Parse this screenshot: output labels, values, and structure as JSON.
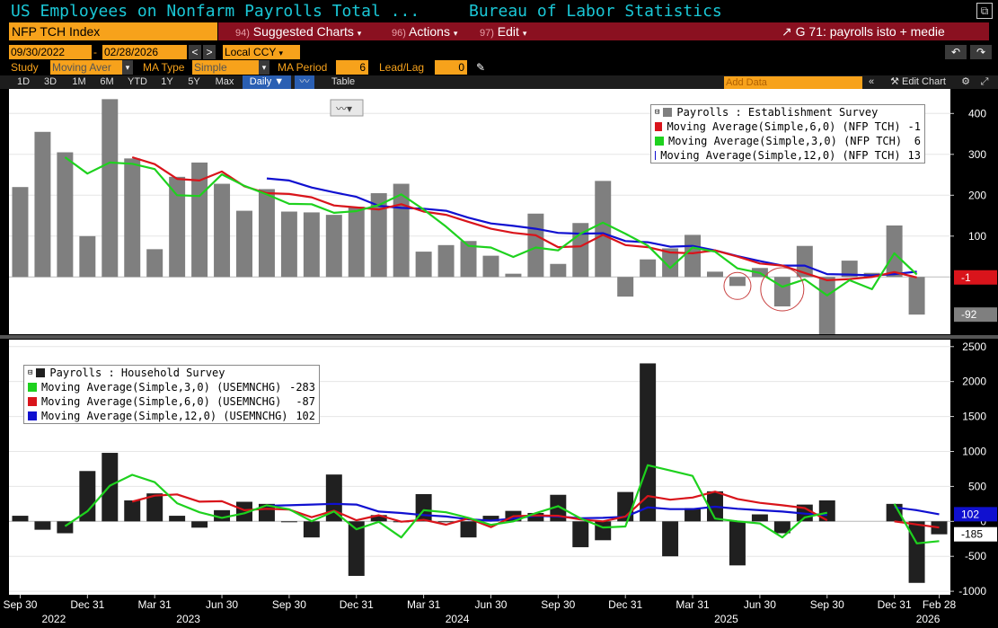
{
  "header": {
    "title_left": "US Employees on Nonfarm Payrolls Total ...",
    "title_right": "Bureau of Labor Statistics"
  },
  "command": {
    "ticker": "NFP TCH Index",
    "suggested": {
      "num": "94)",
      "label": "Suggested Charts"
    },
    "actions": {
      "num": "96)",
      "label": "Actions"
    },
    "edit": {
      "num": "97)",
      "label": "Edit"
    },
    "chart_ref": "G 71: payrolls isto + medie"
  },
  "range": {
    "start": "09/30/2022",
    "end": "02/28/2026",
    "currency": "Local CCY"
  },
  "study": {
    "label": "Study",
    "value": "Moving Aver",
    "ma_type_label": "MA Type",
    "ma_type": "Simple",
    "ma_period_label": "MA Period",
    "ma_period": "6",
    "lead_lag_label": "Lead/Lag",
    "lead_lag": "0"
  },
  "tabs": [
    "1D",
    "3D",
    "1M",
    "6M",
    "YTD",
    "1Y",
    "5Y",
    "Max"
  ],
  "frequency": "Daily",
  "table_label": "Table",
  "add_data_placeholder": "Add Data",
  "edit_chart_label": "Edit Chart",
  "colors": {
    "bars_top": "#7f7f7f",
    "bars_bottom": "#202020",
    "ma_red": "#d9141b",
    "ma_green": "#1ed11e",
    "ma_blue": "#1010d0",
    "accent": "#f7a21b",
    "title": "#1ac7d6"
  },
  "chart_data": [
    {
      "type": "bar",
      "panel": "top",
      "legend": [
        {
          "name": "Payrolls : Establishment Survey",
          "value": ""
        },
        {
          "name": "Moving Average(Simple,6,0) (NFP TCH)",
          "value": "-1"
        },
        {
          "name": "Moving Average(Simple,3,0) (NFP TCH)",
          "value": "6"
        },
        {
          "name": "Moving Average(Simple,12,0) (NFP TCH)",
          "value": "13"
        }
      ],
      "ylim": [
        -140,
        460
      ],
      "yticks": [
        100,
        200,
        300,
        400
      ],
      "last_labels": [
        "-1",
        "-92"
      ],
      "bars": [
        220,
        355,
        305,
        100,
        435,
        290,
        68,
        245,
        280,
        228,
        162,
        215,
        160,
        158,
        152,
        172,
        205,
        228,
        62,
        78,
        88,
        52,
        8,
        155,
        32,
        132,
        235,
        -48,
        43,
        70,
        103,
        13,
        -22,
        22,
        -72,
        76,
        -140,
        40,
        10,
        126,
        -92
      ],
      "ma6": [
        null,
        null,
        null,
        null,
        null,
        293,
        276,
        240,
        236,
        258,
        222,
        205,
        203,
        195,
        175,
        170,
        165,
        178,
        160,
        152,
        135,
        118,
        108,
        102,
        73,
        75,
        103,
        78,
        73,
        60,
        58,
        65,
        50,
        33,
        28,
        10,
        -8,
        -5,
        0,
        12,
        -1
      ],
      "ma3": [
        null,
        null,
        293,
        253,
        280,
        277,
        264,
        200,
        198,
        251,
        223,
        202,
        179,
        178,
        157,
        161,
        176,
        202,
        165,
        123,
        76,
        72,
        49,
        72,
        65,
        106,
        133,
        106,
        77,
        22,
        72,
        62,
        21,
        10,
        -24,
        -6,
        -45,
        -8,
        -30,
        58,
        6
      ],
      "ma12": [
        null,
        null,
        null,
        null,
        null,
        null,
        null,
        null,
        null,
        null,
        null,
        241,
        236,
        219,
        207,
        196,
        174,
        169,
        167,
        162,
        145,
        131,
        125,
        118,
        108,
        106,
        107,
        88,
        85,
        74,
        76,
        65,
        51,
        39,
        28,
        28,
        7,
        6,
        4,
        7,
        13
      ]
    },
    {
      "type": "bar",
      "panel": "bottom",
      "legend": [
        {
          "name": "Payrolls : Household Survey",
          "value": ""
        },
        {
          "name": "Moving Average(Simple,3,0) (USEMNCHG)",
          "value": "-283"
        },
        {
          "name": "Moving Average(Simple,6,0) (USEMNCHG)",
          "value": "-87"
        },
        {
          "name": "Moving Average(Simple,12,0) (USEMNCHG)",
          "value": "102"
        }
      ],
      "ylim": [
        -1050,
        2600
      ],
      "yticks": [
        -1000,
        -500,
        0,
        500,
        1000,
        1500,
        2000,
        2500
      ],
      "last_labels": [
        "102",
        "-185"
      ],
      "bars": [
        80,
        -120,
        -170,
        720,
        980,
        300,
        400,
        80,
        -90,
        160,
        280,
        250,
        -10,
        -230,
        670,
        -780,
        90,
        0,
        390,
        0,
        -230,
        80,
        150,
        120,
        380,
        -370,
        -270,
        420,
        2260,
        -500,
        190,
        430,
        -630,
        100,
        -170,
        240,
        300,
        null,
        null,
        250,
        -880,
        -185
      ],
      "ma3": [
        null,
        null,
        -70,
        144,
        510,
        666,
        560,
        260,
        130,
        50,
        116,
        230,
        173,
        3,
        143,
        -113,
        -7,
        -230,
        160,
        130,
        50,
        -50,
        0,
        117,
        217,
        43,
        -87,
        -73,
        803,
        727,
        650,
        40,
        0,
        -30,
        -230,
        57,
        123,
        null,
        null,
        250,
        -315,
        -283
      ],
      "ma6": [
        null,
        null,
        null,
        null,
        null,
        283,
        368,
        386,
        281,
        288,
        160,
        180,
        169,
        59,
        153,
        15,
        87,
        -5,
        22,
        -48,
        42,
        -82,
        73,
        85,
        80,
        27,
        0,
        70,
        363,
        310,
        340,
        425,
        320,
        265,
        230,
        190,
        15,
        null,
        null,
        0,
        -45,
        -87
      ],
      "ma12": [
        null,
        null,
        null,
        null,
        null,
        null,
        null,
        null,
        null,
        null,
        null,
        222,
        230,
        240,
        250,
        240,
        140,
        120,
        90,
        70,
        30,
        10,
        40,
        80,
        70,
        45,
        50,
        65,
        200,
        175,
        175,
        210,
        180,
        160,
        140,
        110,
        90,
        null,
        null,
        200,
        160,
        102
      ]
    }
  ],
  "xaxis": {
    "ticks": [
      {
        "i": 0,
        "label": "Sep 30"
      },
      {
        "i": 3,
        "label": "Dec 31"
      },
      {
        "i": 6,
        "label": "Mar 31"
      },
      {
        "i": 9,
        "label": "Jun 30"
      },
      {
        "i": 12,
        "label": "Sep 30"
      },
      {
        "i": 15,
        "label": "Dec 31"
      },
      {
        "i": 18,
        "label": "Mar 31"
      },
      {
        "i": 21,
        "label": "Jun 30"
      },
      {
        "i": 24,
        "label": "Sep 30"
      },
      {
        "i": 27,
        "label": "Dec 31"
      },
      {
        "i": 30,
        "label": "Mar 31"
      },
      {
        "i": 33,
        "label": "Jun 30"
      },
      {
        "i": 36,
        "label": "Sep 30"
      },
      {
        "i": 39,
        "label": "Dec 31"
      },
      {
        "i": 41,
        "label": "Feb 28"
      }
    ],
    "years": [
      {
        "i": 1.5,
        "label": "2022"
      },
      {
        "i": 7.5,
        "label": "2023"
      },
      {
        "i": 19.5,
        "label": "2024"
      },
      {
        "i": 31.5,
        "label": "2025"
      },
      {
        "i": 40.5,
        "label": "2026"
      }
    ]
  }
}
